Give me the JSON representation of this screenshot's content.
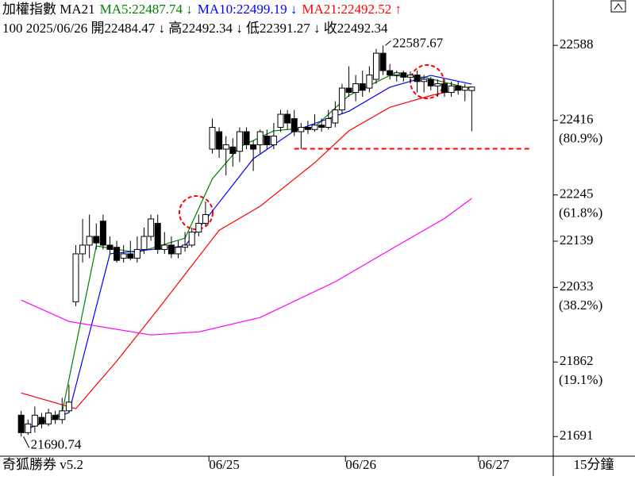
{
  "chart_data": {
    "type": "candlestick",
    "header_line1": [
      {
        "text": "加權指數 MA21",
        "color": "#000000"
      },
      {
        "text": "MA5:22487.74 ↓",
        "color": "#008000"
      },
      {
        "text": "MA10:22499.19 ↓",
        "color": "#0000ff"
      },
      {
        "text": "MA21:22492.52 ↑",
        "color": "#ff0000"
      }
    ],
    "header_line2": "100 2025/06/26 開22484.47 ↓ 高22492.34 ↓ 低22391.27 ↓ 收22492.34",
    "footer_left": "奇狐勝券 v5.2",
    "footer_right": "15分鐘",
    "xlim": [
      -3.1,
      77.7
    ],
    "xticks": [
      {
        "value": 27.5,
        "label": "06/25"
      },
      {
        "value": 47.5,
        "label": "06/26"
      },
      {
        "value": 67,
        "label": "06/27"
      }
    ],
    "ylim": [
      21646,
      22692
    ],
    "yticks": [
      22588,
      22416,
      22245,
      22139,
      22033,
      21862,
      21691
    ],
    "fib_labels": [
      {
        "value": 22416,
        "label": "(80.9%)"
      },
      {
        "value": 22245,
        "label": "(61.8%)"
      },
      {
        "value": 22033,
        "label": "(38.2%)"
      },
      {
        "value": 21862,
        "label": "(19.1%)"
      }
    ],
    "open": [
      21740,
      21700,
      21715,
      21735,
      21720,
      21740,
      21730,
      21750,
      22000,
      22110,
      22130,
      22150,
      22185,
      22130,
      22125,
      22100,
      22110,
      22100,
      22120,
      22150,
      22180,
      22120,
      22130,
      22110,
      22125,
      22130,
      22160,
      22180,
      22350,
      22390,
      22350,
      22355,
      22345,
      22390,
      22360,
      22360,
      22380,
      22360,
      22400,
      22430,
      22420,
      22390,
      22400,
      22395,
      22405,
      22400,
      22410,
      22440,
      22490,
      22480,
      22500,
      22490,
      22510,
      22570,
      22530,
      22520,
      22525,
      22515,
      22520,
      22505,
      22510,
      22495,
      22500,
      22480,
      22495,
      22485,
      22484.47
    ],
    "high": [
      21750,
      21730,
      21760,
      21745,
      21755,
      21750,
      21780,
      21810,
      22130,
      22190,
      22200,
      22180,
      22200,
      22150,
      22140,
      22130,
      22140,
      22150,
      22170,
      22200,
      22200,
      22160,
      22150,
      22140,
      22160,
      22170,
      22200,
      22230,
      22420,
      22400,
      22380,
      22375,
      22400,
      22400,
      22370,
      22395,
      22395,
      22410,
      22440,
      22440,
      22440,
      22410,
      22415,
      22430,
      22420,
      22440,
      22460,
      22500,
      22540,
      22520,
      22530,
      22540,
      22580,
      22587.67,
      22545,
      22530,
      22530,
      22528,
      22530,
      22520,
      22515,
      22510,
      22510,
      22505,
      22505,
      22500,
      22492.34
    ],
    "low": [
      21690.74,
      21695,
      21700,
      21710,
      21715,
      21720,
      21720,
      21745,
      21990,
      22090,
      22100,
      22120,
      22120,
      22110,
      22090,
      22090,
      22095,
      22090,
      22110,
      22140,
      22110,
      22110,
      22100,
      22100,
      22115,
      22125,
      22150,
      22175,
      22340,
      22330,
      22290,
      22310,
      22320,
      22350,
      22300,
      22340,
      22350,
      22350,
      22390,
      22395,
      22380,
      22350,
      22385,
      22390,
      22390,
      22395,
      22400,
      22430,
      22470,
      22460,
      22470,
      22480,
      22500,
      22520,
      22510,
      22505,
      22505,
      22505,
      22480,
      22480,
      22485,
      22470,
      22470,
      22470,
      22475,
      22460,
      22391.27
    ],
    "close": [
      21700,
      21720,
      21740,
      21720,
      21745,
      21730,
      21750,
      21770,
      22110,
      22130,
      22150,
      22135,
      22130,
      22120,
      22095,
      22110,
      22100,
      22120,
      22150,
      22190,
      22120,
      22130,
      22110,
      22125,
      22130,
      22160,
      22180,
      22200,
      22400,
      22350,
      22360,
      22340,
      22390,
      22360,
      22350,
      22390,
      22360,
      22380,
      22430,
      22410,
      22390,
      22400,
      22395,
      22405,
      22400,
      22420,
      22440,
      22490,
      22480,
      22500,
      22485,
      22520,
      22570,
      22530,
      22520,
      22525,
      22515,
      22520,
      22505,
      22510,
      22495,
      22500,
      22480,
      22495,
      22485,
      22492,
      22492.34
    ],
    "series": [
      {
        "color": "#008000",
        "x": [
          1,
          6,
          11,
          17,
          24,
          28,
          32,
          37,
          43,
          48,
          54,
          59,
          66
        ],
        "values": [
          21709,
          21746,
          22128,
          22113,
          22146,
          22282,
          22355,
          22392,
          22401,
          22473,
          22519,
          22515,
          22488
        ]
      },
      {
        "color": "#0000ff",
        "x": [
          1,
          7,
          13,
          24,
          29,
          34,
          40,
          48,
          54,
          60,
          66
        ],
        "values": [
          21709,
          21746,
          22110,
          22128,
          22228,
          22328,
          22392,
          22437,
          22492,
          22519,
          22499
        ]
      },
      {
        "color": "#ff0000",
        "x": [
          0,
          8,
          14,
          20,
          29,
          35,
          43,
          48,
          54,
          60,
          66
        ],
        "values": [
          21791,
          21755,
          21864,
          21982,
          22164,
          22219,
          22319,
          22392,
          22446,
          22473,
          22493
        ]
      },
      {
        "color": "#ff00ff",
        "x": [
          0,
          7,
          19,
          26,
          35,
          46,
          55,
          62,
          66
        ],
        "values": [
          22004,
          21955,
          21924,
          21931,
          21964,
          22046,
          22128,
          22191,
          22237
        ]
      }
    ],
    "annotations": [
      {
        "text": "22587.67",
        "value": 22587.67,
        "index": 53
      },
      {
        "text": "21690.74",
        "value": 21690.74,
        "index": 0
      }
    ],
    "levels": [
      {
        "value": 22351,
        "from": 40,
        "to": 74.8,
        "color": "#ff0000"
      }
    ]
  }
}
